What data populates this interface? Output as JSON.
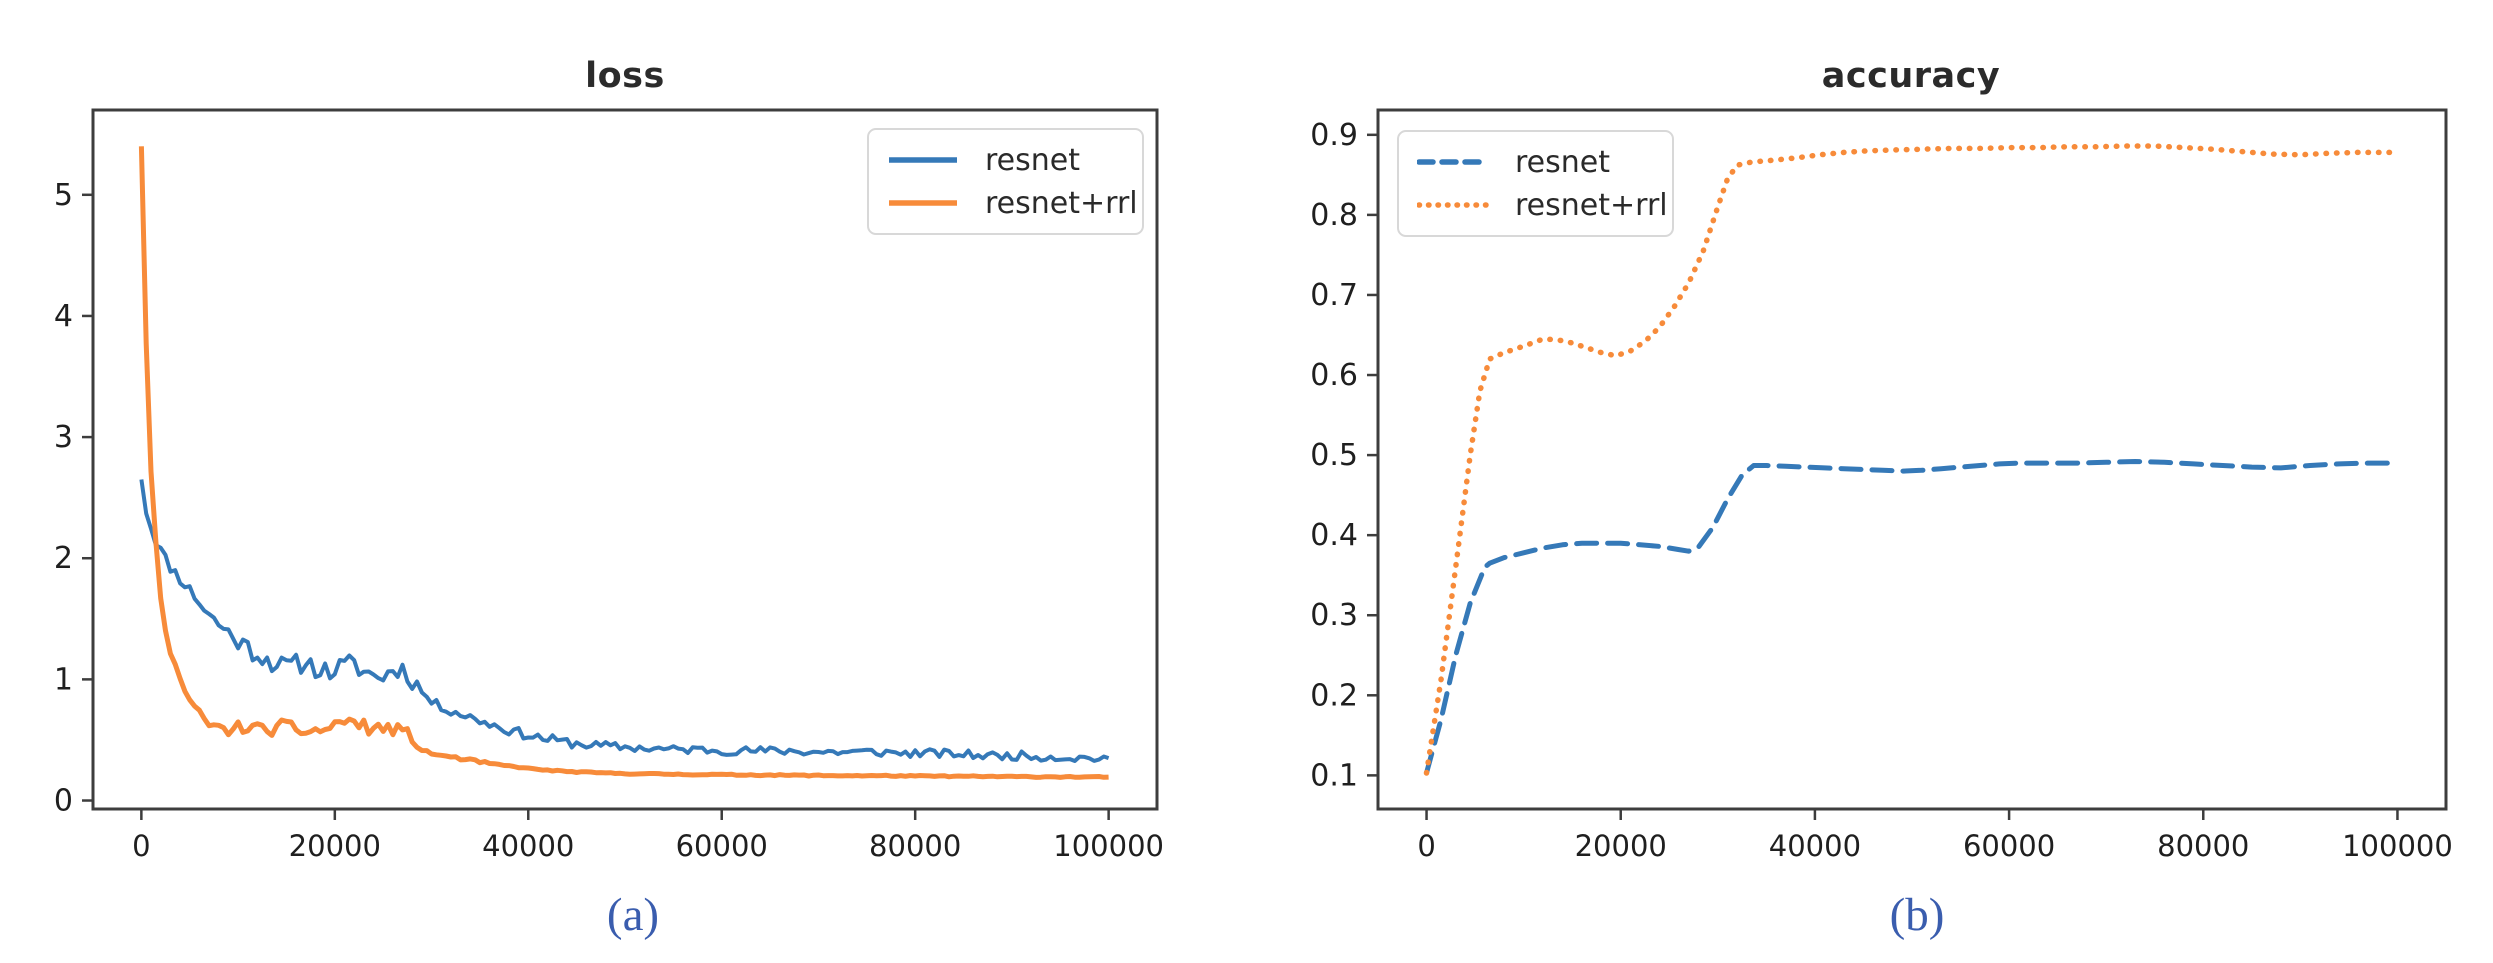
{
  "page": {
    "background": "#ffffff"
  },
  "colors": {
    "resnet": "#3579b8",
    "resnet_rrl": "#f78b3a",
    "axis": "#3d3d3d",
    "tick_text": "#1f1f1f",
    "title_text": "#2b2b2b",
    "legend_text": "#2a2a2a",
    "legend_border": "#d8d8d8",
    "caption": "#3a5dae"
  },
  "captions": {
    "left": "(a)",
    "right": "(b)"
  },
  "chart_data": [
    {
      "id": "loss",
      "type": "line",
      "title": "loss",
      "xlabel": "",
      "ylabel": "",
      "grid": false,
      "xlim": [
        -5000,
        105000
      ],
      "ylim": [
        -0.07,
        5.7
      ],
      "x_ticks": [
        0,
        20000,
        40000,
        60000,
        80000,
        100000
      ],
      "x_tick_labels": [
        "0",
        "20000",
        "40000",
        "60000",
        "80000",
        "100000"
      ],
      "y_ticks": [
        0,
        1,
        2,
        3,
        4,
        5
      ],
      "y_tick_labels": [
        "0",
        "1",
        "2",
        "3",
        "4",
        "5"
      ],
      "legend": {
        "position": "upper-right",
        "entries": [
          {
            "name": "resnet",
            "color": "resnet",
            "line_style": "solid"
          },
          {
            "name": "resnet+rrl",
            "color": "resnet_rrl",
            "line_style": "solid"
          }
        ]
      },
      "series": [
        {
          "name": "resnet",
          "color": "resnet",
          "line_style": "solid",
          "width": 4,
          "noise_segments": [
            [
              -5000,
              9000,
              0.05
            ],
            [
              9000,
              29000,
              0.085
            ],
            [
              29000,
              45000,
              0.04
            ],
            [
              45000,
              105000,
              0.035
            ]
          ],
          "points": [
            [
              0,
              2.65
            ],
            [
              400,
              2.42
            ],
            [
              900,
              2.28
            ],
            [
              1500,
              2.15
            ],
            [
              2200,
              2.03
            ],
            [
              3000,
              1.93
            ],
            [
              3800,
              1.85
            ],
            [
              4600,
              1.78
            ],
            [
              5400,
              1.7
            ],
            [
              6300,
              1.6
            ],
            [
              7200,
              1.52
            ],
            [
              8200,
              1.44
            ],
            [
              9200,
              1.37
            ],
            [
              10300,
              1.3
            ],
            [
              11400,
              1.24
            ],
            [
              12500,
              1.19
            ],
            [
              13600,
              1.14
            ],
            [
              14700,
              1.1
            ],
            [
              15800,
              1.12
            ],
            [
              17000,
              1.14
            ],
            [
              18200,
              1.09
            ],
            [
              19400,
              1.06
            ],
            [
              20600,
              1.1
            ],
            [
              21800,
              1.13
            ],
            [
              23000,
              1.07
            ],
            [
              24200,
              1.02
            ],
            [
              25400,
              1.04
            ],
            [
              26400,
              1.1
            ],
            [
              27200,
              1.07
            ],
            [
              28000,
              1.0
            ],
            [
              28800,
              0.92
            ],
            [
              29600,
              0.84
            ],
            [
              30500,
              0.79
            ],
            [
              31500,
              0.76
            ],
            [
              32500,
              0.73
            ],
            [
              33500,
              0.7
            ],
            [
              35000,
              0.66
            ],
            [
              36500,
              0.62
            ],
            [
              38000,
              0.58
            ],
            [
              39500,
              0.55
            ],
            [
              41000,
              0.52
            ],
            [
              42500,
              0.5
            ],
            [
              44000,
              0.48
            ],
            [
              46000,
              0.46
            ],
            [
              48000,
              0.45
            ],
            [
              50000,
              0.44
            ],
            [
              52500,
              0.43
            ],
            [
              55000,
              0.42
            ],
            [
              58000,
              0.42
            ],
            [
              61000,
              0.41
            ],
            [
              64000,
              0.41
            ],
            [
              67000,
              0.41
            ],
            [
              70000,
              0.4
            ],
            [
              73000,
              0.4
            ],
            [
              76000,
              0.4
            ],
            [
              79000,
              0.39
            ],
            [
              82000,
              0.39
            ],
            [
              85000,
              0.38
            ],
            [
              88000,
              0.37
            ],
            [
              91000,
              0.37
            ],
            [
              94000,
              0.36
            ],
            [
              97000,
              0.35
            ],
            [
              100000,
              0.35
            ]
          ]
        },
        {
          "name": "resnet+rrl",
          "color": "resnet_rrl",
          "line_style": "solid",
          "width": 5,
          "noise_segments": [
            [
              -5000,
              5000,
              0.05
            ],
            [
              5000,
              28000,
              0.055
            ],
            [
              28000,
              36000,
              0.012
            ],
            [
              36000,
              105000,
              0.005
            ]
          ],
          "points": [
            [
              0,
              5.4
            ],
            [
              300,
              4.4
            ],
            [
              600,
              3.5
            ],
            [
              900,
              2.85
            ],
            [
              1200,
              2.4
            ],
            [
              1600,
              2.0
            ],
            [
              2000,
              1.7
            ],
            [
              2500,
              1.45
            ],
            [
              3000,
              1.26
            ],
            [
              3500,
              1.11
            ],
            [
              4000,
              1.0
            ],
            [
              4500,
              0.9
            ],
            [
              5000,
              0.82
            ],
            [
              5500,
              0.75
            ],
            [
              6000,
              0.7
            ],
            [
              6800,
              0.64
            ],
            [
              7600,
              0.6
            ],
            [
              8500,
              0.58
            ],
            [
              9500,
              0.59
            ],
            [
              10500,
              0.61
            ],
            [
              11500,
              0.6
            ],
            [
              12500,
              0.58
            ],
            [
              13500,
              0.59
            ],
            [
              14500,
              0.61
            ],
            [
              15500,
              0.6
            ],
            [
              16500,
              0.58
            ],
            [
              17500,
              0.57
            ],
            [
              18500,
              0.58
            ],
            [
              19500,
              0.6
            ],
            [
              20400,
              0.64
            ],
            [
              21200,
              0.67
            ],
            [
              22000,
              0.64
            ],
            [
              23000,
              0.61
            ],
            [
              24000,
              0.59
            ],
            [
              25000,
              0.6
            ],
            [
              26000,
              0.59
            ],
            [
              26800,
              0.57
            ],
            [
              27600,
              0.54
            ],
            [
              28200,
              0.47
            ],
            [
              28800,
              0.42
            ],
            [
              29500,
              0.4
            ],
            [
              30500,
              0.38
            ],
            [
              31500,
              0.365
            ],
            [
              33000,
              0.345
            ],
            [
              34500,
              0.325
            ],
            [
              36000,
              0.305
            ],
            [
              38000,
              0.285
            ],
            [
              40000,
              0.265
            ],
            [
              42000,
              0.25
            ],
            [
              44000,
              0.24
            ],
            [
              46000,
              0.232
            ],
            [
              48000,
              0.227
            ],
            [
              50000,
              0.223
            ],
            [
              53000,
              0.219
            ],
            [
              56000,
              0.216
            ],
            [
              59000,
              0.214
            ],
            [
              62000,
              0.212
            ],
            [
              65000,
              0.21
            ],
            [
              68000,
              0.208
            ],
            [
              71000,
              0.206
            ],
            [
              74000,
              0.205
            ],
            [
              77000,
              0.204
            ],
            [
              80000,
              0.202
            ],
            [
              84000,
              0.2
            ],
            [
              88000,
              0.198
            ],
            [
              92000,
              0.196
            ],
            [
              96000,
              0.195
            ],
            [
              100000,
              0.193
            ]
          ]
        }
      ]
    },
    {
      "id": "accuracy",
      "type": "line",
      "title": "accuracy",
      "xlabel": "",
      "ylabel": "",
      "grid": false,
      "xlim": [
        -5000,
        105000
      ],
      "ylim": [
        0.058,
        0.931
      ],
      "x_ticks": [
        0,
        20000,
        40000,
        60000,
        80000,
        100000
      ],
      "x_tick_labels": [
        "0",
        "20000",
        "40000",
        "60000",
        "80000",
        "100000"
      ],
      "y_ticks": [
        0.1,
        0.2,
        0.3,
        0.4,
        0.5,
        0.6,
        0.7,
        0.8,
        0.9
      ],
      "y_tick_labels": [
        "0.1",
        "0.2",
        "0.3",
        "0.4",
        "0.5",
        "0.6",
        "0.7",
        "0.8",
        "0.9"
      ],
      "legend": {
        "position": "upper-left",
        "entries": [
          {
            "name": "resnet",
            "color": "resnet",
            "line_style": "dashed"
          },
          {
            "name": "resnet+rrl",
            "color": "resnet_rrl",
            "line_style": "dotted"
          }
        ]
      },
      "series": [
        {
          "name": "resnet",
          "color": "resnet",
          "line_style": "dashed",
          "width": 5,
          "noise_segments": [],
          "points": [
            [
              0,
              0.103
            ],
            [
              1500,
              0.17
            ],
            [
              3000,
              0.25
            ],
            [
              4500,
              0.315
            ],
            [
              6000,
              0.36
            ],
            [
              6500,
              0.365
            ],
            [
              8000,
              0.372
            ],
            [
              10000,
              0.378
            ],
            [
              12000,
              0.384
            ],
            [
              14000,
              0.388
            ],
            [
              16000,
              0.39
            ],
            [
              18000,
              0.39
            ],
            [
              20000,
              0.39
            ],
            [
              22000,
              0.388
            ],
            [
              24000,
              0.386
            ],
            [
              26000,
              0.382
            ],
            [
              27000,
              0.38
            ],
            [
              28000,
              0.385
            ],
            [
              29500,
              0.41
            ],
            [
              31000,
              0.445
            ],
            [
              32500,
              0.475
            ],
            [
              33700,
              0.487
            ],
            [
              35000,
              0.487
            ],
            [
              37000,
              0.486
            ],
            [
              39000,
              0.485
            ],
            [
              41000,
              0.484
            ],
            [
              43000,
              0.483
            ],
            [
              45000,
              0.482
            ],
            [
              47000,
              0.481
            ],
            [
              49000,
              0.48
            ],
            [
              51000,
              0.481
            ],
            [
              53000,
              0.483
            ],
            [
              55000,
              0.485
            ],
            [
              57000,
              0.487
            ],
            [
              59000,
              0.489
            ],
            [
              61000,
              0.49
            ],
            [
              64000,
              0.49
            ],
            [
              67000,
              0.49
            ],
            [
              70000,
              0.491
            ],
            [
              73000,
              0.492
            ],
            [
              76000,
              0.491
            ],
            [
              79000,
              0.489
            ],
            [
              82000,
              0.487
            ],
            [
              85000,
              0.485
            ],
            [
              88000,
              0.484
            ],
            [
              91000,
              0.487
            ],
            [
              94000,
              0.489
            ],
            [
              97000,
              0.49
            ],
            [
              100000,
              0.49
            ]
          ]
        },
        {
          "name": "resnet+rrl",
          "color": "resnet_rrl",
          "line_style": "dotted",
          "width": 5.5,
          "noise_segments": [],
          "points": [
            [
              0,
              0.103
            ],
            [
              1500,
              0.22
            ],
            [
              3000,
              0.36
            ],
            [
              4500,
              0.5
            ],
            [
              5500,
              0.58
            ],
            [
              6500,
              0.62
            ],
            [
              8000,
              0.628
            ],
            [
              10000,
              0.636
            ],
            [
              12000,
              0.645
            ],
            [
              13500,
              0.644
            ],
            [
              15000,
              0.64
            ],
            [
              16500,
              0.634
            ],
            [
              18000,
              0.628
            ],
            [
              19500,
              0.624
            ],
            [
              21000,
              0.63
            ],
            [
              22500,
              0.642
            ],
            [
              24000,
              0.66
            ],
            [
              25500,
              0.685
            ],
            [
              27000,
              0.715
            ],
            [
              28500,
              0.755
            ],
            [
              30000,
              0.81
            ],
            [
              31000,
              0.845
            ],
            [
              32000,
              0.862
            ],
            [
              33500,
              0.866
            ],
            [
              35500,
              0.868
            ],
            [
              38000,
              0.871
            ],
            [
              40500,
              0.875
            ],
            [
              43000,
              0.878
            ],
            [
              45500,
              0.88
            ],
            [
              48000,
              0.881
            ],
            [
              51000,
              0.882
            ],
            [
              54000,
              0.883
            ],
            [
              57000,
              0.883
            ],
            [
              60000,
              0.884
            ],
            [
              63000,
              0.884
            ],
            [
              66000,
              0.885
            ],
            [
              69000,
              0.885
            ],
            [
              72000,
              0.886
            ],
            [
              75000,
              0.886
            ],
            [
              78000,
              0.884
            ],
            [
              81000,
              0.882
            ],
            [
              84000,
              0.879
            ],
            [
              87000,
              0.876
            ],
            [
              90000,
              0.875
            ],
            [
              93000,
              0.877
            ],
            [
              96000,
              0.878
            ],
            [
              100000,
              0.878
            ]
          ]
        }
      ]
    }
  ]
}
